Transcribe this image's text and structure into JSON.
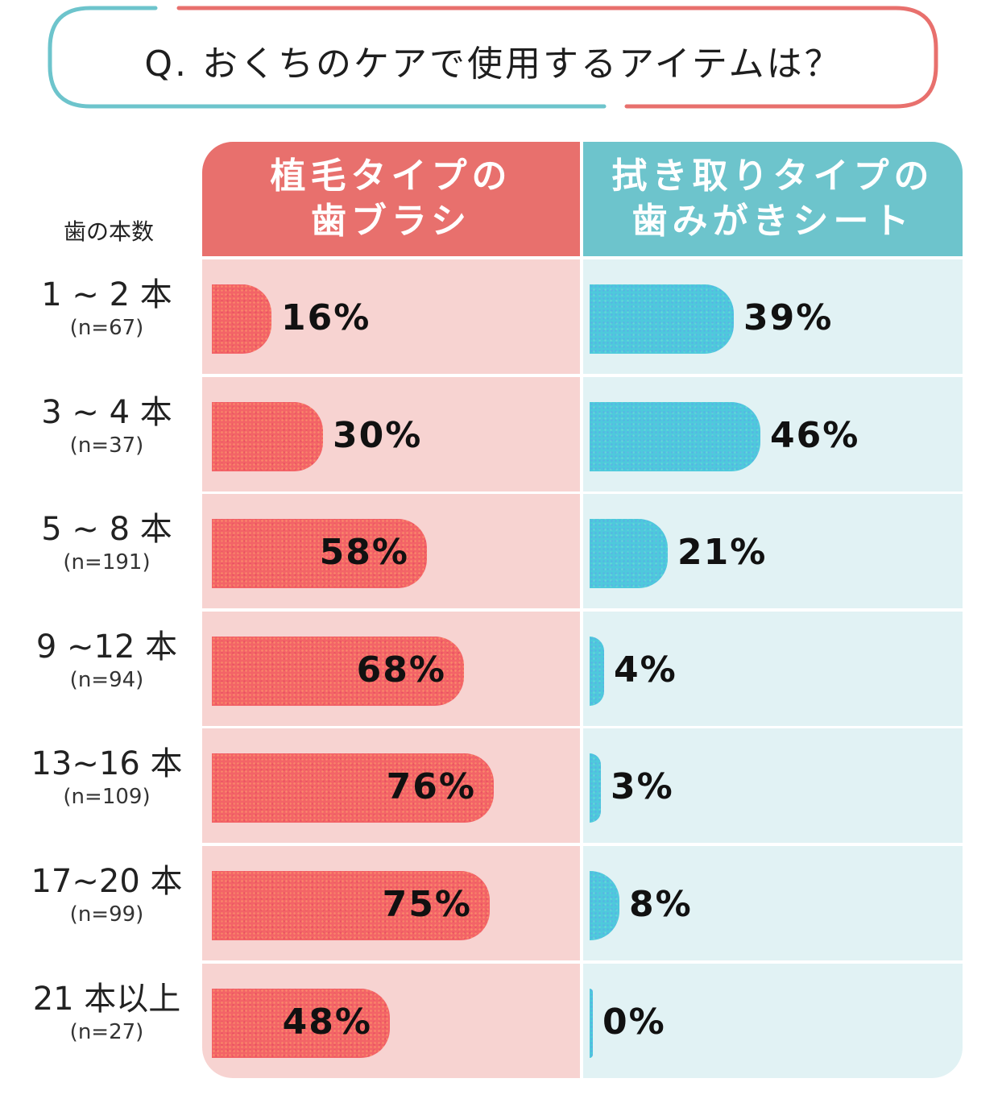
{
  "colors": {
    "red_header": "#e8706d",
    "blue_header": "#6dc4cc",
    "red_bar": "#f36467",
    "blue_bar": "#4ec9dc",
    "red_cell": "#f7d3d1",
    "blue_cell": "#e1f2f4"
  },
  "question": "Q. おくちのケアで使用するアイテムは？",
  "teeth_label": "歯の本数",
  "chart_data": {
    "type": "bar",
    "orientation": "horizontal",
    "title": "Q. おくちのケアで使用するアイテムは？",
    "ylabel": "歯の本数",
    "xlim": [
      0,
      100
    ],
    "unit": "%",
    "categories": [
      {
        "label": "1 ~ 2 本",
        "n": "(n=67)"
      },
      {
        "label": "3 ~ 4 本",
        "n": "(n=37)"
      },
      {
        "label": "5 ~ 8 本",
        "n": "(n=191)"
      },
      {
        "label": "9 ~12 本",
        "n": "(n=94)"
      },
      {
        "label": "13~16 本",
        "n": "(n=109)"
      },
      {
        "label": "17~20 本",
        "n": "(n=99)"
      },
      {
        "label": "21 本以上",
        "n": "(n=27)"
      }
    ],
    "series": [
      {
        "name_lines": [
          "植毛タイプの",
          "歯ブラシ"
        ],
        "values": [
          16,
          30,
          58,
          68,
          76,
          75,
          48
        ]
      },
      {
        "name_lines": [
          "拭き取りタイプの",
          "歯みがきシート"
        ],
        "values": [
          39,
          46,
          21,
          4,
          3,
          8,
          0
        ]
      }
    ]
  }
}
